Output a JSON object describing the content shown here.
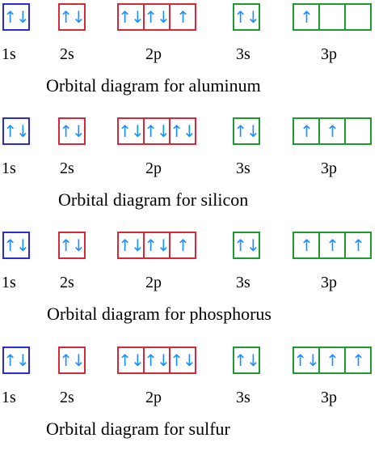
{
  "colors": {
    "1s": "#2a2ad6",
    "2s": "#d62a3a",
    "2p": "#d62a3a",
    "3s": "#1f9a2e",
    "3p": "#1f9a2e",
    "arrow": "#1e90ff"
  },
  "subshell_labels": [
    "1s",
    "2s",
    "2p",
    "3s",
    "3p"
  ],
  "diagrams": [
    {
      "caption": "Orbital diagram for aluminum",
      "orbitals": {
        "1s": [
          "↑↓"
        ],
        "2s": [
          "↑↓"
        ],
        "2p": [
          "↑↓",
          "↑↓",
          "↑"
        ],
        "3s": [
          "↑↓"
        ],
        "3p": [
          "↑",
          "",
          ""
        ]
      }
    },
    {
      "caption": "Orbital diagram for silicon",
      "orbitals": {
        "1s": [
          "↑↓"
        ],
        "2s": [
          "↑↓"
        ],
        "2p": [
          "↑↓",
          "↑↓",
          "↑↓"
        ],
        "3s": [
          "↑↓"
        ],
        "3p": [
          "↑",
          "↑",
          ""
        ]
      }
    },
    {
      "caption": "Orbital diagram for phosphorus",
      "orbitals": {
        "1s": [
          "↑↓"
        ],
        "2s": [
          "↑↓"
        ],
        "2p": [
          "↑↓",
          "↑↓",
          "↑"
        ],
        "3s": [
          "↑↓"
        ],
        "3p": [
          "↑",
          "↑",
          "↑"
        ]
      }
    },
    {
      "caption": "Orbital diagram for sulfur",
      "orbitals": {
        "1s": [
          "↑↓"
        ],
        "2s": [
          "↑↓"
        ],
        "2p": [
          "↑↓",
          "↑↓",
          "↑↓"
        ],
        "3s": [
          "↑↓"
        ],
        "3p": [
          "↑↓",
          "↑",
          "↑"
        ]
      }
    }
  ]
}
